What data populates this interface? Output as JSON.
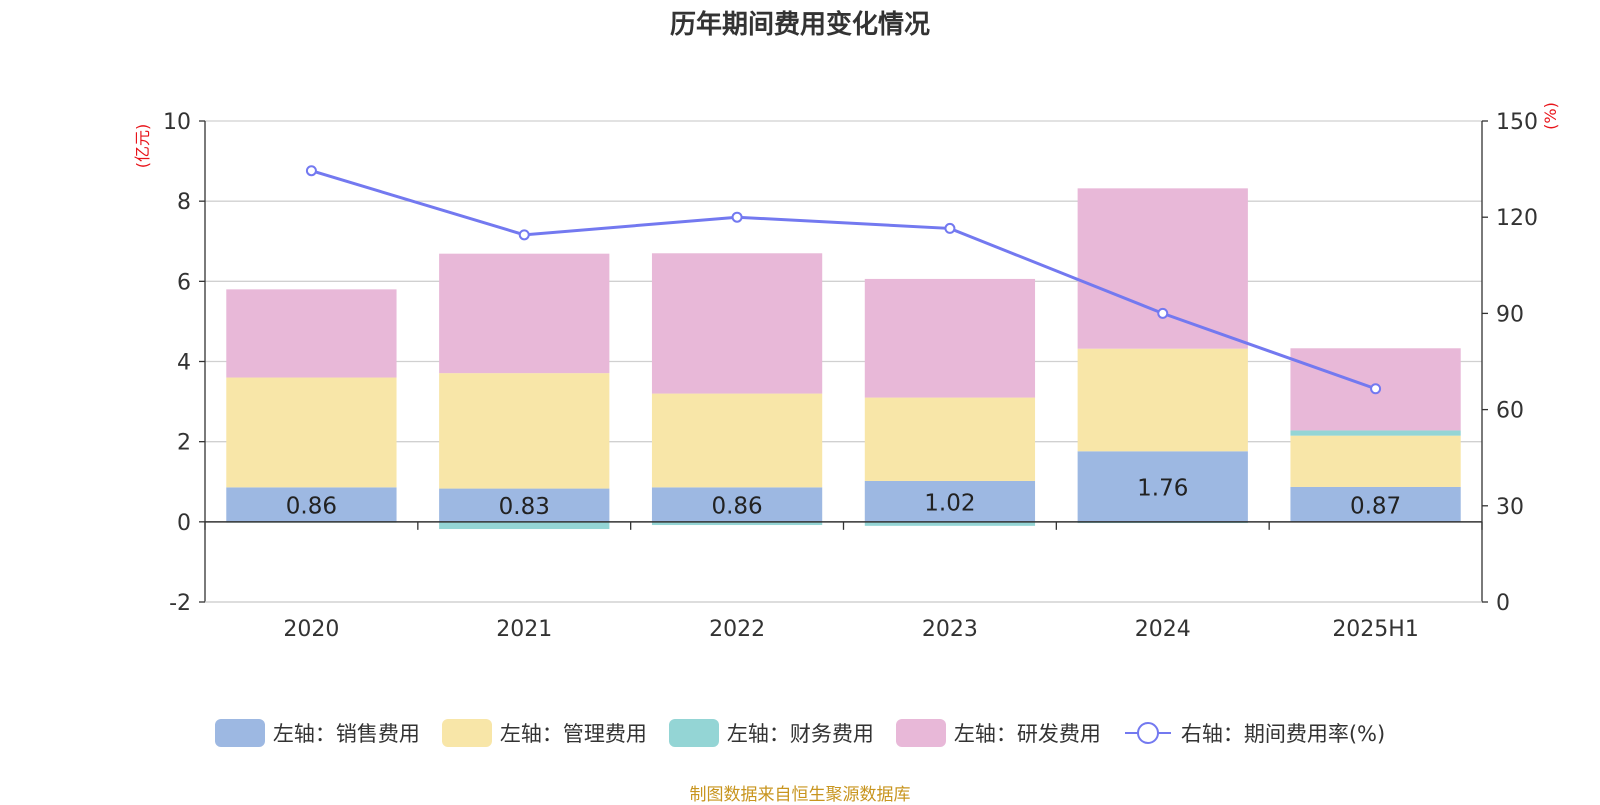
{
  "chart_data": {
    "type": "bar",
    "title": "历年期间费用变化情况",
    "categories": [
      "2020",
      "2021",
      "2022",
      "2023",
      "2024",
      "2025H1"
    ],
    "left_axis": {
      "unit": "(亿元)",
      "min": -2,
      "max": 10,
      "ticks": [
        "-2",
        "0",
        "2",
        "4",
        "6",
        "8",
        "10"
      ]
    },
    "right_axis": {
      "unit": "(%)",
      "min": 0,
      "max": 150,
      "ticks": [
        "0",
        "30",
        "60",
        "90",
        "120",
        "150"
      ]
    },
    "grid": true,
    "legend_position": "bottom",
    "stacked": true,
    "series": [
      {
        "name": "左轴：销售费用",
        "type": "bar",
        "axis": "left",
        "color": "#9db8e2",
        "values": [
          0.86,
          0.83,
          0.86,
          1.02,
          1.76,
          0.87
        ],
        "data_labels": [
          "0.86",
          "0.83",
          "0.86",
          "1.02",
          "1.76",
          "0.87"
        ]
      },
      {
        "name": "左轴：管理费用",
        "type": "bar",
        "axis": "left",
        "color": "#f8e6a8",
        "values": [
          2.74,
          2.88,
          2.34,
          2.08,
          2.56,
          1.28
        ]
      },
      {
        "name": "左轴：财务费用",
        "type": "bar",
        "axis": "left",
        "color": "#94d5d5",
        "values": [
          -0.02,
          -0.18,
          -0.08,
          -0.1,
          -0.03,
          0.13
        ]
      },
      {
        "name": "左轴：研发费用",
        "type": "bar",
        "axis": "left",
        "color": "#e8b8d8",
        "values": [
          2.2,
          2.98,
          3.5,
          2.96,
          4.0,
          2.05
        ]
      },
      {
        "name": "右轴：期间费用率(%)",
        "type": "line",
        "axis": "right",
        "color": "#7379f0",
        "values": [
          134.5,
          114.5,
          120,
          116.5,
          90,
          66.5
        ]
      }
    ]
  },
  "footer": {
    "source": "制图数据来自恒生聚源数据库"
  }
}
